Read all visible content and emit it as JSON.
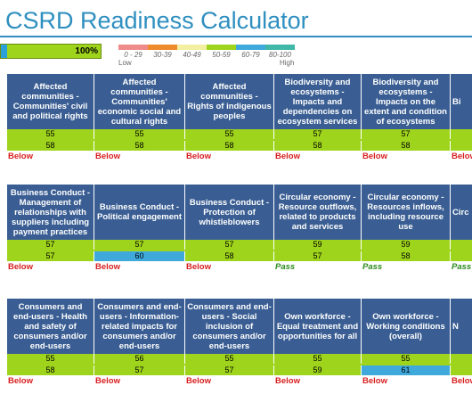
{
  "title": "CSRD Readiness Calculator",
  "progress": {
    "label": "100%",
    "value": 100,
    "color": "#9fd41c",
    "accent": "#2a9fd8"
  },
  "legend": {
    "items": [
      {
        "label": "0 - 29",
        "color": "#ef8a8a"
      },
      {
        "label": "30-39",
        "color": "#ef8a2a"
      },
      {
        "label": "40-49",
        "color": "#f2f0a0"
      },
      {
        "label": "50-59",
        "color": "#9fd41c"
      },
      {
        "label": "60-79",
        "color": "#3fa9dc"
      },
      {
        "label": "80-100",
        "color": "#3fb8a8"
      }
    ],
    "low": "Low",
    "high": "High"
  },
  "colors": {
    "header": "#3a5e93",
    "green": "#9fd41c",
    "blue": "#3fa9dc",
    "below": "#d81e1e",
    "pass": "#2b8a1e"
  },
  "sections": [
    {
      "columns": [
        {
          "header": "Affected communities - Communities' civil and political rights",
          "v1": "55",
          "v2": "58",
          "status": "Below",
          "status_type": "below",
          "v2_blue": false
        },
        {
          "header": "Affected communities - Communities' economic social and cultural rights",
          "v1": "55",
          "v2": "58",
          "status": "Below",
          "status_type": "below",
          "v2_blue": false
        },
        {
          "header": "Affected communities - Rights of indigenous peoples",
          "v1": "55",
          "v2": "58",
          "status": "Below",
          "status_type": "below",
          "v2_blue": false
        },
        {
          "header": "Biodiversity and ecosystems - Impacts and dependencies on ecosystem services",
          "v1": "57",
          "v2": "58",
          "status": "Below",
          "status_type": "below",
          "v2_blue": false
        },
        {
          "header": "Biodiversity and ecosystems - Impacts on the extent and condition of ecosystems",
          "v1": "57",
          "v2": "58",
          "status": "Below",
          "status_type": "below",
          "v2_blue": false
        },
        {
          "header": "Bi",
          "v1": "",
          "v2": "",
          "status": "Below",
          "status_type": "below",
          "v2_blue": false
        }
      ]
    },
    {
      "columns": [
        {
          "header": "Business Conduct - Management of relationships with suppliers including payment practices",
          "v1": "57",
          "v2": "57",
          "status": "Below",
          "status_type": "below",
          "v2_blue": false
        },
        {
          "header": "Business Conduct - Political engagement",
          "v1": "57",
          "v2": "60",
          "status": "Below",
          "status_type": "below",
          "v2_blue": true
        },
        {
          "header": "Business Conduct - Protection of whistleblowers",
          "v1": "57",
          "v2": "58",
          "status": "Below",
          "status_type": "below",
          "v2_blue": false
        },
        {
          "header": "Circular economy - Resource outflows, related to products and services",
          "v1": "59",
          "v2": "57",
          "status": "Pass",
          "status_type": "pass",
          "v2_blue": false
        },
        {
          "header": "Circular economy - Resources inflows, including resource use",
          "v1": "59",
          "v2": "58",
          "status": "Pass",
          "status_type": "pass",
          "v2_blue": false
        },
        {
          "header": "Circ",
          "v1": "",
          "v2": "",
          "status": "Pass",
          "status_type": "pass",
          "v2_blue": false
        }
      ]
    },
    {
      "columns": [
        {
          "header": "Consumers and end-users - Health and safety of consumers and/or end-users",
          "v1": "55",
          "v2": "58",
          "status": "Below",
          "status_type": "below",
          "v2_blue": false
        },
        {
          "header": "Consumers and end-users - Information-related impacts for consumers and/or end-users",
          "v1": "56",
          "v2": "57",
          "status": "Below",
          "status_type": "below",
          "v2_blue": false
        },
        {
          "header": "Consumers and end-users - Social inclusion of consumers and/or end-users",
          "v1": "55",
          "v2": "57",
          "status": "Below",
          "status_type": "below",
          "v2_blue": false
        },
        {
          "header": "Own workforce - Equal treatment and opportunities for all",
          "v1": "55",
          "v2": "59",
          "status": "Below",
          "status_type": "below",
          "v2_blue": false
        },
        {
          "header": "Own workforce - Working conditions (overall)",
          "v1": "55",
          "v2": "61",
          "status": "Below",
          "status_type": "below",
          "v2_blue": true
        },
        {
          "header": "N",
          "v1": "",
          "v2": "",
          "status": "Below",
          "status_type": "below",
          "v2_blue": false
        }
      ]
    }
  ]
}
